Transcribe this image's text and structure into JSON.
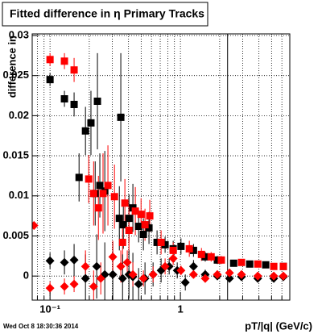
{
  "chart_data": {
    "type": "scatter",
    "title": "Fitted difference in η  Primary Tracks",
    "y_label": "difference in",
    "x_label": "pT/|q| (GeV/c)",
    "timestamp": "Wed Oct  8 18:30:36 2014",
    "log_x": true,
    "grid": true,
    "xlim": [
      0.073,
      6.9
    ],
    "ylim": [
      -0.003,
      0.0302
    ],
    "xticks": [
      {
        "value": 0.1,
        "label": "10⁻¹"
      },
      1
    ],
    "xminorticks": [
      0.08,
      0.09,
      0.2,
      0.3,
      0.4,
      0.5,
      0.6,
      0.7,
      0.8,
      0.9,
      2,
      3,
      4,
      5,
      6
    ],
    "yticks": [
      0,
      0.005,
      0.01,
      0.015,
      0.02,
      0.025,
      0.03
    ],
    "vline": 2.3,
    "series": [
      {
        "color": "#000000",
        "marker": "square",
        "x": [
          0.1,
          0.129,
          0.153,
          0.167,
          0.187,
          0.206,
          0.222,
          0.231,
          0.241,
          0.263,
          0.34,
          0.349,
          0.365,
          0.403,
          0.432,
          0.478,
          0.52,
          0.574,
          0.662,
          0.763,
          0.88,
          1.01,
          1.26,
          1.55,
          1.92,
          2.56,
          3.4,
          4.51,
          6.16
        ],
        "values": [
          0.0245,
          0.0221,
          0.0214,
          0.0123,
          0.0181,
          0.0191,
          0.0103,
          0.0218,
          0.0113,
          0.0106,
          0.0072,
          0.0198,
          0.0064,
          0.0072,
          0.0085,
          0.0062,
          0.0052,
          0.006,
          0.0042,
          0.0039,
          0.0034,
          0.0037,
          0.0032,
          0.0024,
          0.002,
          0.0016,
          0.0015,
          0.0014,
          0.0012
        ],
        "errors": [
          0.0008,
          0.001,
          0.0015,
          0.003,
          0.003,
          0.004,
          0.004,
          0.006,
          0.004,
          0.005,
          0.004,
          0.008,
          0.003,
          0.003,
          0.003,
          0.002,
          0.002,
          0.002,
          0.0015,
          0.001,
          0.001,
          0.001,
          0.0008,
          0.0006,
          0.0005,
          0.0004,
          0.0004,
          0.0004,
          0.0004
        ]
      },
      {
        "color": "#ff0000",
        "marker": "square",
        "x": [
          0.1,
          0.129,
          0.153,
          0.198,
          0.216,
          0.235,
          0.255,
          0.278,
          0.312,
          0.36,
          0.375,
          0.403,
          0.451,
          0.499,
          0.535,
          0.582,
          0.711,
          0.88,
          1.17,
          1.45,
          1.72,
          2.06,
          2.94,
          3.92,
          5.2,
          6.16
        ],
        "values": [
          0.027,
          0.0268,
          0.0257,
          0.0121,
          0.0103,
          0.0085,
          0.0103,
          0.0113,
          0.0099,
          0.0042,
          0.0091,
          0.0057,
          0.0081,
          0.0077,
          0.0064,
          0.0075,
          0.0042,
          0.0032,
          0.0034,
          0.0027,
          0.0024,
          0.002,
          0.0017,
          0.0015,
          0.0012,
          0.0012
        ],
        "errors": [
          0.0008,
          0.001,
          0.0015,
          0.003,
          0.004,
          0.004,
          0.005,
          0.005,
          0.004,
          0.003,
          0.003,
          0.003,
          0.003,
          0.002,
          0.002,
          0.002,
          0.0015,
          0.001,
          0.001,
          0.0008,
          0.0006,
          0.0005,
          0.0004,
          0.0004,
          0.0004,
          0.0004
        ]
      },
      {
        "color": "#000000",
        "marker": "diamond",
        "x": [
          0.1,
          0.129,
          0.153,
          0.187,
          0.228,
          0.263,
          0.303,
          0.36,
          0.403,
          0.432,
          0.478,
          0.535,
          0.617,
          0.711,
          0.82,
          0.945,
          1.09,
          1.26,
          1.55,
          1.92,
          2.38,
          2.94,
          3.92,
          5.2,
          6.16
        ],
        "values": [
          0.0019,
          0.0017,
          0.002,
          -0.0003,
          0.0012,
          0.0002,
          0.0002,
          -0.0003,
          0.0002,
          -0.0001,
          -0.001,
          -0.0003,
          0.0002,
          0.0007,
          0.0012,
          0.0007,
          -0.0008,
          0.0012,
          0.0002,
          0,
          -0.0003,
          -0.0001,
          -0.0003,
          -0.0003,
          -0.0001
        ],
        "errors": [
          0.001,
          0.0015,
          0.002,
          0.003,
          0.004,
          0.004,
          0.004,
          0.003,
          0.003,
          0.003,
          0.002,
          0.002,
          0.0015,
          0.0015,
          0.001,
          0.001,
          0.001,
          0.0008,
          0.0006,
          0.0005,
          0.0004,
          0.0004,
          0.0004,
          0.0004,
          0.0004
        ]
      },
      {
        "color": "#ff0000",
        "marker": "diamond",
        "x": [
          0.0753,
          0.1,
          0.129,
          0.153,
          0.187,
          0.216,
          0.245,
          0.303,
          0.349,
          0.391,
          0.432,
          0.52,
          0.617,
          0.763,
          0.88,
          1.01,
          1.26,
          1.55,
          1.92,
          2.38,
          2.94,
          3.92,
          5.2,
          6.16
        ],
        "values": [
          0.0063,
          -0.0015,
          -0.0013,
          -0.001,
          0.0012,
          -0.0013,
          -0.0003,
          0.0024,
          0.0012,
          0.0017,
          0.0002,
          -0.0003,
          0.0002,
          0.0012,
          0.0022,
          0.0007,
          0.0002,
          -0.0003,
          0.0002,
          0.0004,
          0.0002,
          0,
          0,
          0
        ],
        "errors": [
          0.0005,
          0.0008,
          0.001,
          0.001,
          0.002,
          0.002,
          0.002,
          0.002,
          0.002,
          0.0015,
          0.0015,
          0.001,
          0.001,
          0.001,
          0.0008,
          0.0006,
          0.0005,
          0.0005,
          0.0004,
          0.0004,
          0.0004,
          0.0004,
          0.0004,
          0.0004
        ]
      }
    ]
  }
}
